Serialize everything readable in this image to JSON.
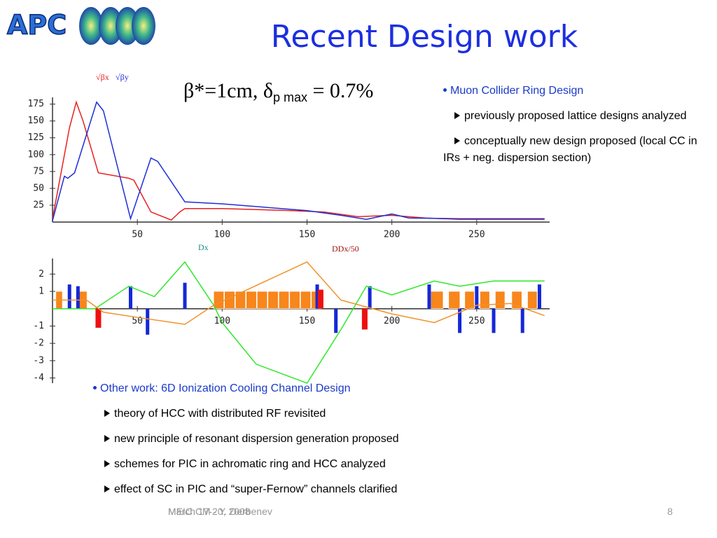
{
  "logo": "APC",
  "title": "Recent Design work",
  "formula": {
    "main": "β*=1cm, δ",
    "sub": "p max",
    "rest": " = 0.7%"
  },
  "beta_chart": {
    "type": "line",
    "xlim": [
      0,
      293
    ],
    "ylim": [
      0,
      185
    ],
    "xticks": [
      50,
      100,
      150,
      200,
      250
    ],
    "yticks": [
      25,
      50,
      75,
      100,
      125,
      150,
      175
    ],
    "series": [
      {
        "name": "√βx",
        "color": "#e8201e",
        "x": [
          0,
          10,
          14,
          18,
          27,
          45,
          48,
          58,
          70,
          75,
          78,
          100,
          140,
          160,
          180,
          200,
          220,
          240,
          290
        ],
        "values": [
          5,
          140,
          178,
          150,
          73,
          65,
          62,
          15,
          3,
          15,
          20,
          20,
          17,
          15,
          8,
          10,
          6,
          4,
          4
        ]
      },
      {
        "name": "√βy",
        "color": "#1f2fd6",
        "x": [
          0,
          7,
          9,
          13,
          26,
          30,
          46,
          58,
          62,
          78,
          100,
          150,
          170,
          185,
          200,
          210,
          240,
          290
        ],
        "values": [
          2,
          68,
          65,
          73,
          178,
          165,
          5,
          95,
          90,
          30,
          27,
          17,
          10,
          4,
          12,
          6,
          5,
          5
        ]
      }
    ]
  },
  "lattice_chart": {
    "type": "line",
    "xlim": [
      0,
      293
    ],
    "ylim": [
      -4.3,
      2.9
    ],
    "xticks": [
      50,
      100,
      150,
      200,
      250
    ],
    "yticks": [
      -4,
      -3,
      -2,
      -1,
      1,
      2
    ],
    "series": [
      {
        "name": "Dx",
        "color": "#2ee82a",
        "label_color": "#1a8a8a",
        "x": [
          0,
          25,
          45,
          60,
          78,
          95,
          100,
          120,
          150,
          170,
          185,
          200,
          225,
          240,
          260,
          290
        ],
        "values": [
          0,
          0,
          1.3,
          0.7,
          2.7,
          0.2,
          -0.8,
          -3.2,
          -4.3,
          -1.2,
          1.3,
          0.8,
          1.6,
          1.3,
          1.6,
          1.6
        ]
      },
      {
        "name": "DDx/50",
        "color": "#f0922a",
        "label_color": "#a01010",
        "x": [
          0,
          20,
          30,
          50,
          78,
          95,
          150,
          170,
          200,
          225,
          250,
          270,
          290
        ],
        "values": [
          0.5,
          0.5,
          -0.2,
          -0.5,
          -0.9,
          0.2,
          2.7,
          0.5,
          -0.3,
          -0.8,
          0.2,
          0.3,
          -0.4
        ]
      }
    ],
    "dipole_height": 1,
    "dipole_color": "#f7861c",
    "dipoles": [
      [
        2,
        6.2
      ],
      [
        14.5,
        20.7
      ],
      [
        95,
        101.4
      ],
      [
        101.4,
        107.8
      ],
      [
        107.8,
        114.2
      ],
      [
        114.2,
        120.6
      ],
      [
        120.6,
        127
      ],
      [
        127,
        133.4
      ],
      [
        133.4,
        139.8
      ],
      [
        139.8,
        146.2
      ],
      [
        146.2,
        152.6
      ],
      [
        152.6,
        159
      ],
      [
        223,
        230.6
      ],
      [
        233.5,
        240.5
      ],
      [
        243,
        249
      ],
      [
        252,
        258
      ],
      [
        261,
        267
      ],
      [
        270.7,
        277
      ],
      [
        280,
        286
      ]
    ],
    "quad_color": "#1428d8",
    "quads": [
      {
        "x": 10,
        "h": 1.4
      },
      {
        "x": 15,
        "h": 1.3
      },
      {
        "x": 46,
        "h": 1.3
      },
      {
        "x": 56,
        "h": -1.5
      },
      {
        "x": 78,
        "h": 1.5
      },
      {
        "x": 156,
        "h": 1.4
      },
      {
        "x": 167,
        "h": -1.4
      },
      {
        "x": 187,
        "h": 1.3
      },
      {
        "x": 222,
        "h": 1.4
      },
      {
        "x": 240,
        "h": -1.4
      },
      {
        "x": 250,
        "h": 1.3
      },
      {
        "x": 260,
        "h": -1.4
      },
      {
        "x": 277,
        "h": -1.4
      },
      {
        "x": 287,
        "h": 1.4
      }
    ],
    "sext_color": "#ee1010",
    "sextupoles": [
      {
        "x": 27,
        "h": -1.1
      },
      {
        "x": 158,
        "h": 1.1
      },
      {
        "x": 184,
        "h": -1.2
      }
    ]
  },
  "right_notes": {
    "heading": "Muon Collider Ring Design",
    "items": [
      "previously proposed lattice designs analyzed",
      "conceptually new design proposed (local CC in IRs + neg. dispersion section)"
    ]
  },
  "bottom_notes": {
    "heading": "Other work: 6D Ionization Cooling Channel Design",
    "items": [
      "theory of HCC with distributed RF revisited",
      "new principle of resonant dispersion generation proposed",
      "schemes for PIC in achromatic ring and HCC analyzed",
      "effect of SC in PIC and “super-Fernow” channels clarified"
    ]
  },
  "footer": {
    "date": "March 17-20, 2008",
    "event": "MEIC CM - Y. Derbenev",
    "page": "8"
  }
}
